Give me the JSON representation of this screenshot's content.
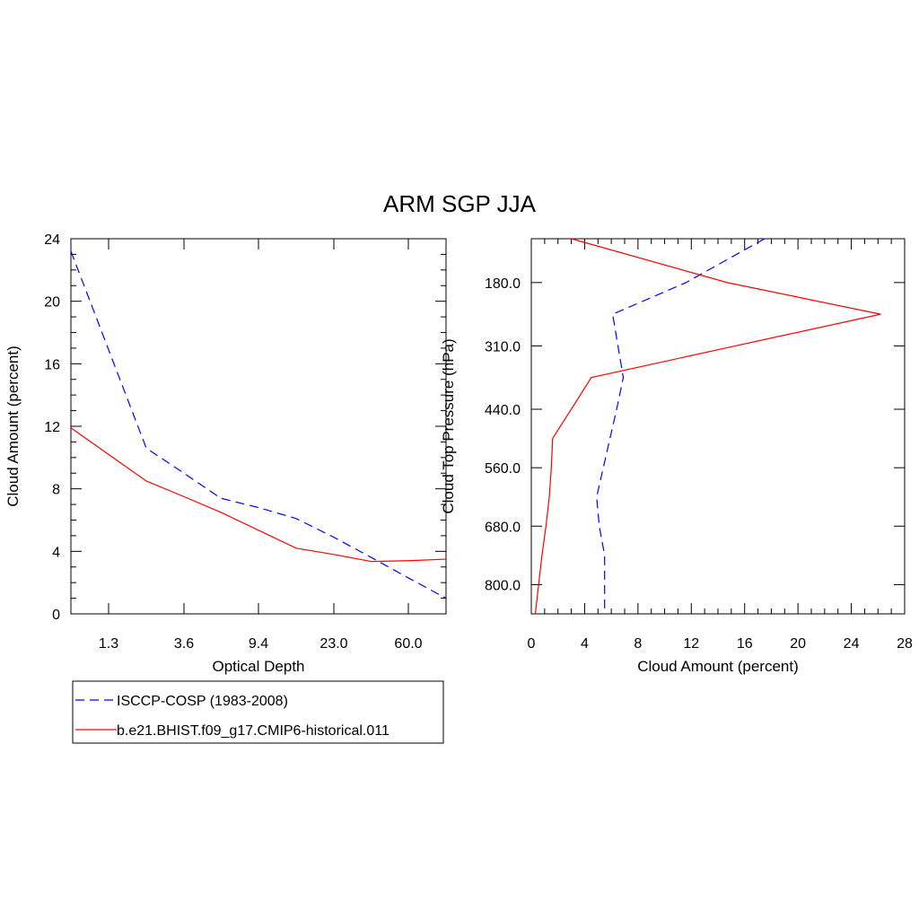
{
  "title": "ARM SGP JJA",
  "chart_data": [
    {
      "type": "line",
      "xlabel": "Optical Depth",
      "ylabel": "Cloud Amount (percent)",
      "x_tick_labels": [
        "1.3",
        "3.6",
        "9.4",
        "23.0",
        "60.0"
      ],
      "y_ticks": [
        0,
        4,
        8,
        12,
        16,
        20,
        24
      ],
      "ylim": [
        0,
        24
      ],
      "x": [
        0.3,
        1.3,
        2.45,
        3.6,
        6.5,
        9.4,
        16.2,
        23.0,
        41.5,
        60.0,
        80.0
      ],
      "series": [
        {
          "name": "ISCCP-COSP (1983-2008)",
          "color": "#0000ff",
          "dash": "dashed",
          "values": [
            23.2,
            16.9,
            10.6,
            9.0,
            7.4,
            6.8,
            6.1,
            4.9,
            3.6,
            2.3,
            1.0
          ]
        },
        {
          "name": "b.e21.BHIST.f09_g17.CMIP6-historical.011",
          "color": "#ff0000",
          "dash": "solid",
          "values": [
            11.9,
            10.2,
            8.5,
            7.5,
            6.5,
            5.35,
            4.2,
            3.8,
            3.35,
            3.4,
            3.5
          ]
        }
      ]
    },
    {
      "type": "line",
      "xlabel": "Cloud Amount (percent)",
      "ylabel": "Cloud Top Pressure (hPa)",
      "x_ticks": [
        0,
        4,
        8,
        12,
        16,
        20,
        24,
        28
      ],
      "xlim": [
        0,
        28
      ],
      "y_tick_labels": [
        "180.0",
        "310.0",
        "440.0",
        "560.0",
        "680.0",
        "800.0"
      ],
      "pressure": [
        90,
        180,
        245,
        310,
        375,
        440,
        500,
        560,
        620,
        680,
        740,
        800,
        860
      ],
      "series": [
        {
          "name": "ISCCP-COSP (1983-2008)",
          "color": "#0000ff",
          "dash": "dashed",
          "values": [
            17.5,
            11.6,
            6.1,
            6.5,
            6.9,
            6.4,
            5.9,
            5.4,
            4.9,
            5.1,
            5.5,
            5.5,
            5.5
          ]
        },
        {
          "name": "b.e21.BHIST.f09_g17.CMIP6-historical.011",
          "color": "#ff0000",
          "dash": "solid",
          "values": [
            3.0,
            14.7,
            26.2,
            15.3,
            4.5,
            3.0,
            1.6,
            1.5,
            1.35,
            1.1,
            0.8,
            0.55,
            0.3
          ]
        }
      ]
    }
  ]
}
